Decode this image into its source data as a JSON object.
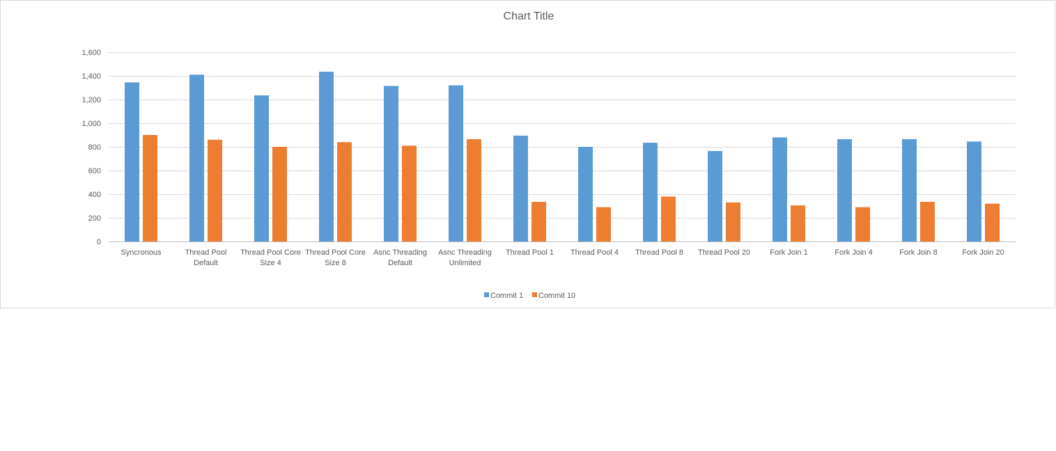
{
  "chart_data": {
    "type": "bar",
    "title": "Chart Title",
    "xlabel": "",
    "ylabel": "",
    "ylim": [
      0,
      1600
    ],
    "yticks": [
      0,
      200,
      400,
      600,
      800,
      1000,
      1200,
      1400,
      1600
    ],
    "ytick_labels": [
      "0",
      "200",
      "400",
      "600",
      "800",
      "1,000",
      "1,200",
      "1,400",
      "1,600"
    ],
    "grid": true,
    "legend_position": "bottom",
    "categories": [
      [
        "Syncronous"
      ],
      [
        "Thread Pool",
        "Default"
      ],
      [
        "Thread Pool Core",
        "Size 4"
      ],
      [
        "Thread Pool Core",
        "Size 8"
      ],
      [
        "Asnc Threading",
        "Default"
      ],
      [
        "Asnc Threading",
        "Unlimited"
      ],
      [
        "Thread Pool 1"
      ],
      [
        "Thread Pool 4"
      ],
      [
        "Thread Pool  8"
      ],
      [
        "Thread Pool 20"
      ],
      [
        "Fork Join 1"
      ],
      [
        "Fork Join 4"
      ],
      [
        "Fork Join 8"
      ],
      [
        "Fork Join 20"
      ]
    ],
    "series": [
      {
        "name": "Commit 1",
        "color": "#5b9bd5",
        "values": [
          1345,
          1410,
          1235,
          1435,
          1315,
          1320,
          895,
          800,
          835,
          765,
          880,
          865,
          865,
          845
        ]
      },
      {
        "name": "Commit 10",
        "color": "#ed7d31",
        "values": [
          900,
          860,
          800,
          840,
          810,
          865,
          335,
          290,
          380,
          330,
          305,
          290,
          335,
          320
        ]
      }
    ]
  }
}
